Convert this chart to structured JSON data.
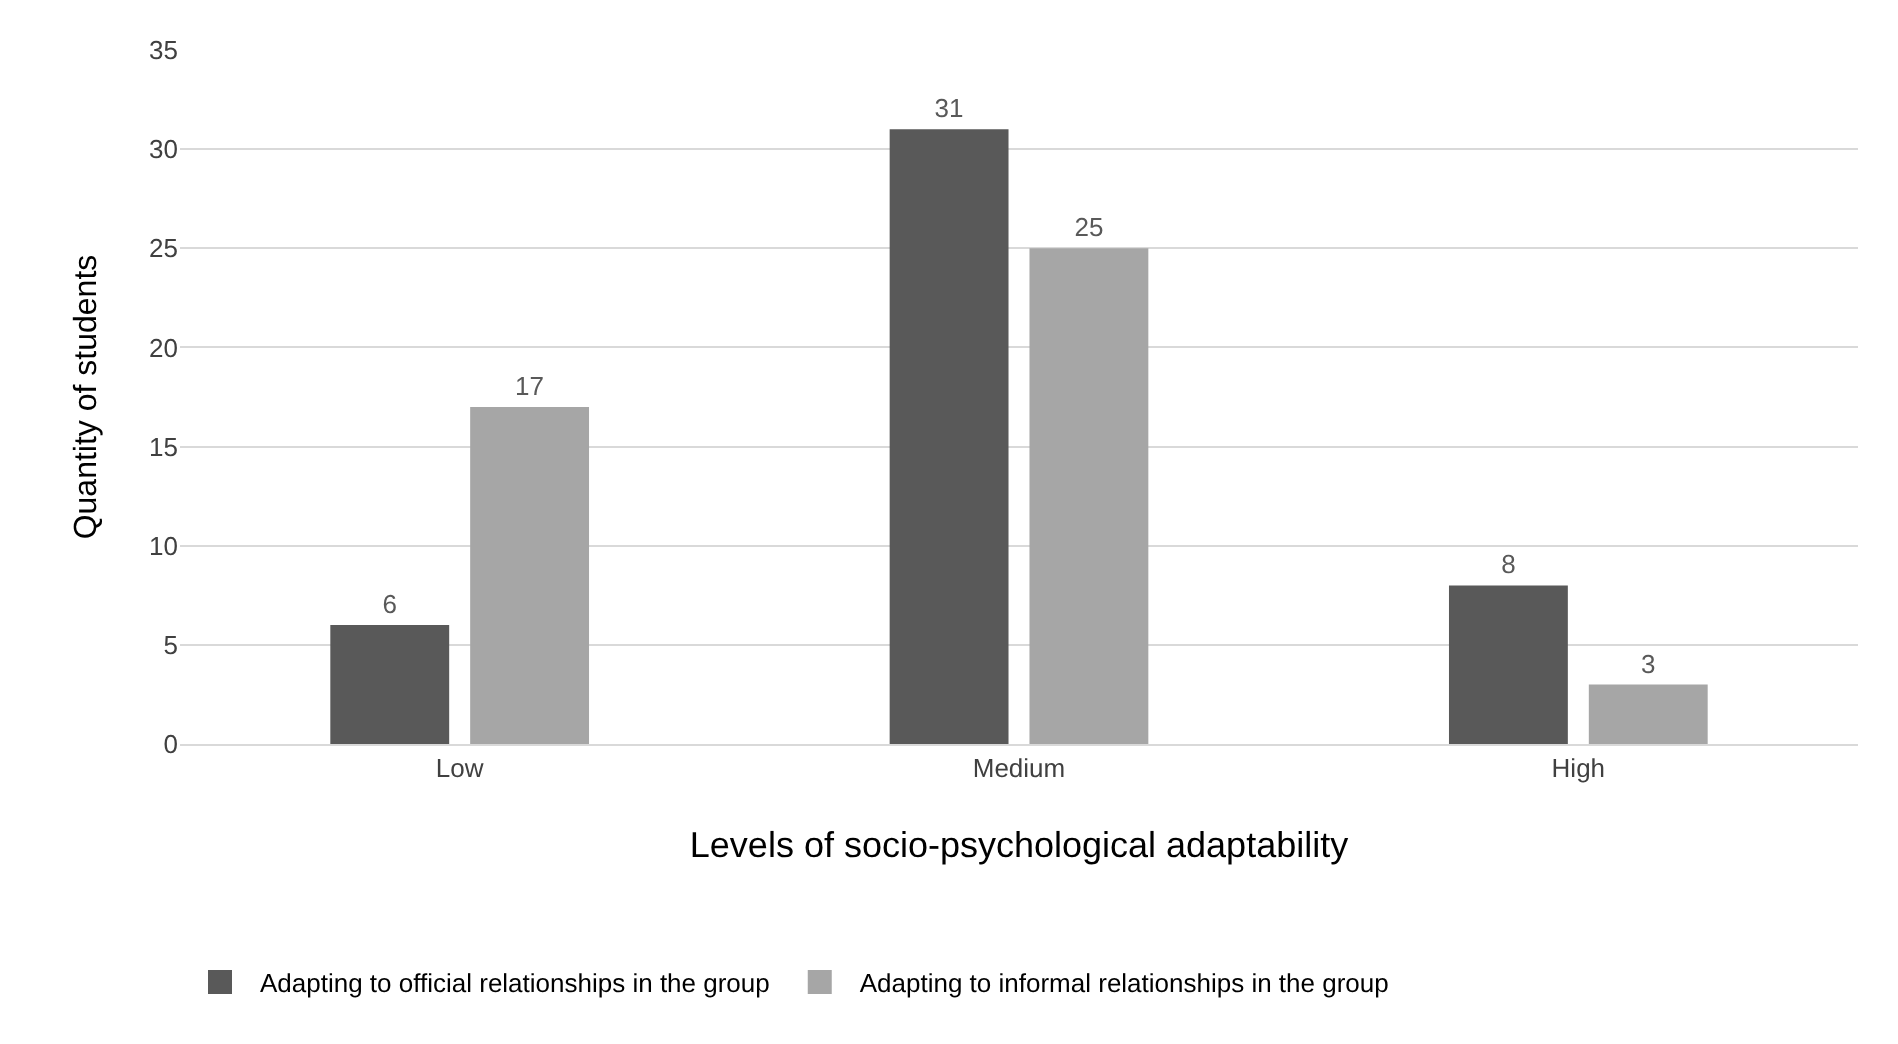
{
  "chart_data": {
    "type": "bar",
    "xlabel": "Levels of socio-psychological adaptability",
    "ylabel": "Quantity of students",
    "categories": [
      "Low",
      "Medium",
      "High"
    ],
    "series": [
      {
        "name": "Adapting to official relationships in the group",
        "color": "#595959",
        "values": [
          6,
          31,
          8
        ]
      },
      {
        "name": "Adapting to informal relationships in the group",
        "color": "#a6a6a6",
        "values": [
          17,
          25,
          3
        ]
      }
    ],
    "ylim": [
      0,
      35
    ],
    "yticks": [
      0,
      5,
      10,
      15,
      20,
      25,
      30,
      35
    ],
    "grid": "y",
    "legend": "bottom",
    "data_labels": true
  }
}
